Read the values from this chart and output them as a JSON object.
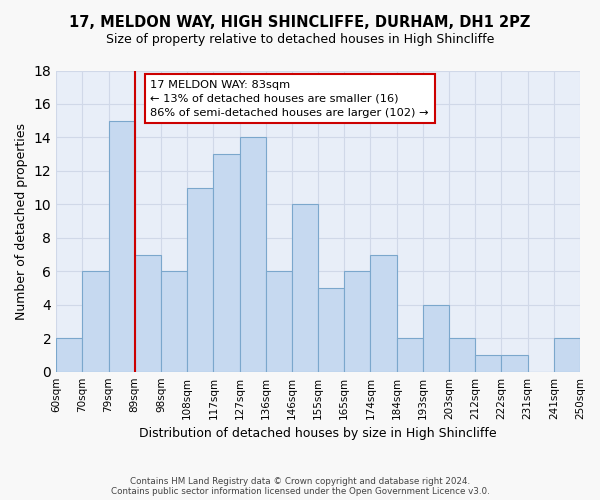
{
  "title": "17, MELDON WAY, HIGH SHINCLIFFE, DURHAM, DH1 2PZ",
  "subtitle": "Size of property relative to detached houses in High Shincliffe",
  "xlabel": "Distribution of detached houses by size in High Shincliffe",
  "ylabel": "Number of detached properties",
  "bin_labels": [
    "60sqm",
    "70sqm",
    "79sqm",
    "89sqm",
    "98sqm",
    "108sqm",
    "117sqm",
    "127sqm",
    "136sqm",
    "146sqm",
    "155sqm",
    "165sqm",
    "174sqm",
    "184sqm",
    "193sqm",
    "203sqm",
    "212sqm",
    "222sqm",
    "231sqm",
    "241sqm",
    "250sqm"
  ],
  "bar_values": [
    2,
    6,
    15,
    7,
    6,
    11,
    13,
    14,
    6,
    10,
    5,
    6,
    7,
    2,
    4,
    2,
    1,
    1,
    0,
    2
  ],
  "bar_color": "#c6d9f0",
  "bar_edge_color": "#7ba7cc",
  "ref_line_x": 3.0,
  "annotation_title": "17 MELDON WAY: 83sqm",
  "annotation_line1": "← 13% of detached houses are smaller (16)",
  "annotation_line2": "86% of semi-detached houses are larger (102) →",
  "annotation_box_color": "#ffffff",
  "annotation_box_edge_color": "#cc0000",
  "ref_line_color": "#cc0000",
  "ylim": [
    0,
    18
  ],
  "yticks": [
    0,
    2,
    4,
    6,
    8,
    10,
    12,
    14,
    16,
    18
  ],
  "grid_color": "#d0d8e8",
  "background_color": "#e8eef8",
  "fig_background_color": "#f8f8f8",
  "footnote1": "Contains HM Land Registry data © Crown copyright and database right 2024.",
  "footnote2": "Contains public sector information licensed under the Open Government Licence v3.0."
}
